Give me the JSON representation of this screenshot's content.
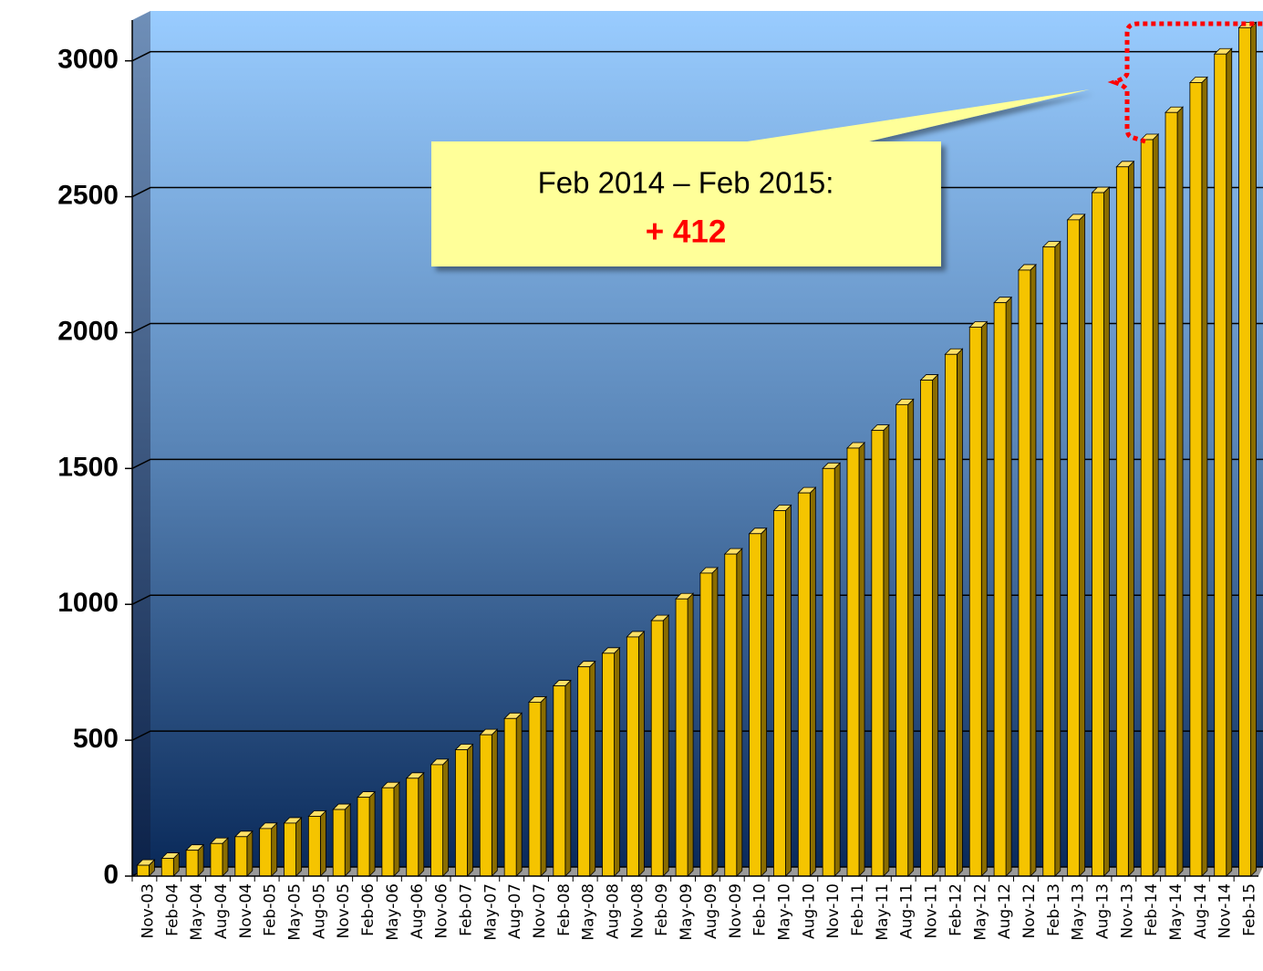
{
  "chart_data": {
    "type": "bar",
    "categories": [
      "Nov-03",
      "Feb-04",
      "May-04",
      "Aug-04",
      "Nov-04",
      "Feb-05",
      "May-05",
      "Aug-05",
      "Nov-05",
      "Feb-06",
      "May-06",
      "Aug-06",
      "Nov-06",
      "Feb-07",
      "May-07",
      "Aug-07",
      "Nov-07",
      "Feb-08",
      "May-08",
      "Aug-08",
      "Nov-08",
      "Feb-09",
      "May-09",
      "Aug-09",
      "Nov-09",
      "Feb-10",
      "May-10",
      "Aug-10",
      "Nov-10",
      "Feb-11",
      "May-11",
      "Aug-11",
      "Nov-11",
      "Feb-12",
      "May-12",
      "Aug-12",
      "Nov-12",
      "Feb-13",
      "May-13",
      "Aug-13",
      "Nov-13",
      "Feb-14",
      "May-14",
      "Aug-14",
      "Nov-14",
      "Feb-15"
    ],
    "values": [
      40,
      65,
      95,
      120,
      145,
      175,
      195,
      220,
      245,
      290,
      325,
      360,
      410,
      465,
      520,
      580,
      640,
      700,
      770,
      820,
      880,
      940,
      1020,
      1115,
      1185,
      1260,
      1345,
      1410,
      1500,
      1575,
      1640,
      1735,
      1825,
      1920,
      2020,
      2110,
      2230,
      2315,
      2415,
      2515,
      2610,
      2710,
      2810,
      2920,
      3025,
      3122
    ],
    "color": "#f5c400",
    "ylim": [
      0,
      3150
    ],
    "yticks": [
      0,
      500,
      1000,
      1500,
      2000,
      2500,
      3000
    ],
    "grid": true,
    "annotation": {
      "text": "Feb 2014 – Feb 2015:",
      "value_text": "+ 412"
    }
  }
}
